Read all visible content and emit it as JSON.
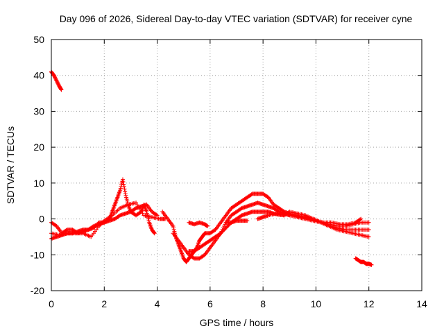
{
  "chart_data": {
    "type": "scatter",
    "title": "Day 096 of 2026, Sidereal Day-to-day VTEC variation (SDTVAR) for receiver cyne",
    "xlabel": "GPS time / hours",
    "ylabel": "SDTVAR / TECUs",
    "xlim": [
      0,
      14
    ],
    "ylim": [
      -20,
      50
    ],
    "x_ticks": [
      "0",
      "2",
      "4",
      "6",
      "8",
      "10",
      "12",
      "14"
    ],
    "y_ticks": [
      "-20",
      "-10",
      "0",
      "10",
      "20",
      "30",
      "40",
      "50"
    ],
    "grid": true,
    "marker": "+",
    "color": "#ff0000",
    "series": [
      {
        "name": "early-high-segment",
        "points": [
          [
            0.0,
            41
          ],
          [
            0.1,
            40
          ],
          [
            0.2,
            38.5
          ],
          [
            0.3,
            37
          ],
          [
            0.38,
            36
          ]
        ]
      },
      {
        "name": "track-a",
        "points": [
          [
            0.0,
            -1
          ],
          [
            0.2,
            -2
          ],
          [
            0.4,
            -4
          ],
          [
            0.6,
            -3
          ],
          [
            0.8,
            -3
          ],
          [
            1.0,
            -4
          ],
          [
            1.2,
            -3.5
          ],
          [
            1.4,
            -3
          ],
          [
            1.6,
            -2.5
          ],
          [
            1.8,
            -1
          ],
          [
            2.0,
            -1
          ],
          [
            2.2,
            -0.5
          ],
          [
            2.4,
            0
          ],
          [
            2.6,
            1
          ],
          [
            2.8,
            1.5
          ],
          [
            3.0,
            2
          ],
          [
            3.2,
            3
          ],
          [
            3.4,
            3.5
          ],
          [
            3.6,
            4
          ],
          [
            3.8,
            2
          ],
          [
            4.0,
            1
          ]
        ]
      },
      {
        "name": "track-b",
        "points": [
          [
            0.0,
            -5.5
          ],
          [
            0.2,
            -5
          ],
          [
            0.4,
            -4.5
          ],
          [
            0.6,
            -4
          ],
          [
            0.8,
            -4
          ],
          [
            1.0,
            -3.5
          ],
          [
            1.2,
            -3
          ],
          [
            1.4,
            -3
          ],
          [
            1.6,
            -2
          ],
          [
            1.8,
            -1.5
          ],
          [
            2.0,
            -1
          ],
          [
            2.2,
            0
          ],
          [
            2.3,
            2
          ],
          [
            2.4,
            4
          ],
          [
            2.5,
            6
          ],
          [
            2.6,
            8
          ],
          [
            2.7,
            11
          ],
          [
            2.8,
            7
          ],
          [
            2.9,
            4
          ],
          [
            3.0,
            2
          ],
          [
            3.2,
            1
          ],
          [
            3.4,
            2
          ],
          [
            3.5,
            4
          ],
          [
            3.6,
            2
          ],
          [
            3.7,
            -1
          ],
          [
            3.8,
            -3
          ],
          [
            3.9,
            -4
          ]
        ]
      },
      {
        "name": "track-c",
        "points": [
          [
            0.0,
            -4
          ],
          [
            0.3,
            -4.5
          ],
          [
            0.6,
            -4
          ],
          [
            0.9,
            -4
          ],
          [
            1.2,
            -4
          ],
          [
            1.5,
            -5
          ],
          [
            1.8,
            -2
          ],
          [
            2.0,
            -0.5
          ],
          [
            2.3,
            1
          ],
          [
            2.6,
            3
          ],
          [
            2.9,
            4
          ],
          [
            3.2,
            4.5
          ],
          [
            3.5,
            1
          ],
          [
            3.8,
            0.5
          ],
          [
            4.1,
            0
          ],
          [
            4.3,
            0
          ]
        ]
      },
      {
        "name": "track-d",
        "points": [
          [
            4.2,
            2
          ],
          [
            4.4,
            0
          ],
          [
            4.6,
            -2
          ],
          [
            4.7,
            -5
          ],
          [
            4.8,
            -7
          ],
          [
            4.9,
            -9
          ],
          [
            5.0,
            -11
          ],
          [
            5.1,
            -12
          ],
          [
            5.2,
            -11
          ],
          [
            5.3,
            -10
          ],
          [
            5.4,
            -9
          ],
          [
            5.5,
            -8
          ],
          [
            5.6,
            -6
          ],
          [
            5.7,
            -5
          ],
          [
            5.8,
            -4
          ],
          [
            6.0,
            -4
          ],
          [
            6.2,
            -3
          ],
          [
            6.4,
            -1
          ],
          [
            6.6,
            1
          ],
          [
            6.8,
            3
          ],
          [
            7.0,
            4
          ],
          [
            7.2,
            5
          ],
          [
            7.4,
            6
          ],
          [
            7.6,
            7
          ],
          [
            7.8,
            7
          ],
          [
            8.0,
            7
          ],
          [
            8.2,
            6
          ],
          [
            8.4,
            4
          ],
          [
            8.6,
            3
          ],
          [
            8.8,
            2
          ],
          [
            9.0,
            1.5
          ],
          [
            9.3,
            1
          ],
          [
            9.6,
            0.5
          ],
          [
            9.9,
            0
          ],
          [
            10.2,
            -1
          ],
          [
            10.5,
            -1.5
          ],
          [
            10.8,
            -2
          ],
          [
            11.1,
            -2
          ],
          [
            11.4,
            -1.5
          ],
          [
            11.7,
            -1
          ],
          [
            12.0,
            -1
          ]
        ]
      },
      {
        "name": "track-e",
        "points": [
          [
            4.6,
            -4
          ],
          [
            4.8,
            -6
          ],
          [
            5.0,
            -8
          ],
          [
            5.2,
            -10
          ],
          [
            5.4,
            -11
          ],
          [
            5.6,
            -11
          ],
          [
            5.8,
            -10
          ],
          [
            6.0,
            -8
          ],
          [
            6.2,
            -6
          ],
          [
            6.4,
            -4
          ],
          [
            6.6,
            -1
          ],
          [
            6.8,
            1
          ],
          [
            7.0,
            2
          ],
          [
            7.2,
            3
          ],
          [
            7.4,
            3.5
          ],
          [
            7.6,
            4
          ],
          [
            7.8,
            4.5
          ],
          [
            8.0,
            4
          ],
          [
            8.2,
            3.5
          ],
          [
            8.4,
            3
          ],
          [
            8.6,
            2
          ],
          [
            8.8,
            1.5
          ],
          [
            9.0,
            1
          ],
          [
            9.3,
            0.5
          ],
          [
            9.6,
            0
          ],
          [
            9.9,
            -0.5
          ],
          [
            10.2,
            -1
          ],
          [
            10.5,
            -2
          ],
          [
            10.8,
            -2.5
          ],
          [
            11.1,
            -3
          ],
          [
            11.4,
            -3
          ],
          [
            11.7,
            -3
          ],
          [
            12.0,
            -3
          ]
        ]
      },
      {
        "name": "track-f",
        "points": [
          [
            5.2,
            -9
          ],
          [
            5.4,
            -9
          ],
          [
            5.6,
            -8
          ],
          [
            5.8,
            -7
          ],
          [
            6.0,
            -6
          ],
          [
            6.2,
            -5
          ],
          [
            6.4,
            -4
          ],
          [
            6.6,
            -2.5
          ],
          [
            6.8,
            -1
          ],
          [
            7.0,
            0
          ],
          [
            7.2,
            1
          ],
          [
            7.4,
            1.5
          ],
          [
            7.6,
            2
          ],
          [
            7.8,
            2
          ],
          [
            8.0,
            2
          ],
          [
            8.2,
            2
          ],
          [
            8.4,
            1.5
          ],
          [
            8.6,
            1.2
          ],
          [
            8.8,
            1
          ],
          [
            9.0,
            2
          ],
          [
            9.3,
            1.5
          ],
          [
            9.6,
            1
          ],
          [
            9.9,
            0
          ],
          [
            10.2,
            -1
          ],
          [
            10.5,
            -2
          ],
          [
            10.8,
            -3
          ],
          [
            11.1,
            -3.5
          ],
          [
            11.4,
            -4
          ],
          [
            11.7,
            -4.5
          ],
          [
            12.0,
            -5
          ]
        ]
      },
      {
        "name": "track-g",
        "points": [
          [
            5.2,
            -1
          ],
          [
            5.4,
            -1.5
          ],
          [
            5.6,
            -1
          ],
          [
            5.8,
            -1.5
          ],
          [
            5.9,
            -2
          ]
        ]
      },
      {
        "name": "track-h",
        "points": [
          [
            6.6,
            -1
          ],
          [
            6.8,
            -1
          ],
          [
            7.0,
            -0.5
          ],
          [
            7.2,
            -0.5
          ],
          [
            7.4,
            -0.5
          ]
        ]
      },
      {
        "name": "track-i",
        "points": [
          [
            7.8,
            0
          ],
          [
            8.0,
            0.5
          ],
          [
            8.2,
            1
          ],
          [
            8.5,
            1.5
          ],
          [
            8.8,
            1.5
          ],
          [
            9.1,
            1
          ],
          [
            9.4,
            0.5
          ],
          [
            9.7,
            0
          ],
          [
            10.0,
            -0.5
          ],
          [
            10.3,
            -1
          ],
          [
            10.6,
            -1
          ],
          [
            10.9,
            -1.5
          ],
          [
            11.2,
            -1.5
          ],
          [
            11.5,
            -1
          ],
          [
            11.7,
            0
          ]
        ]
      },
      {
        "name": "late-low-segment",
        "points": [
          [
            11.5,
            -11
          ],
          [
            11.6,
            -11.5
          ],
          [
            11.7,
            -12
          ],
          [
            11.8,
            -12
          ],
          [
            11.9,
            -12.5
          ],
          [
            12.0,
            -12.5
          ],
          [
            12.1,
            -12.8
          ]
        ]
      }
    ]
  }
}
